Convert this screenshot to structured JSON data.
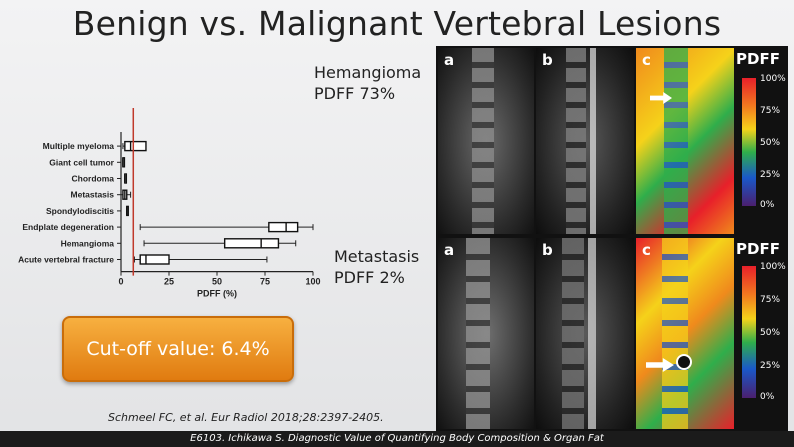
{
  "title": "Benign vs. Malignant Vertebral Lesions",
  "hemangioma": {
    "line1": "Hemangioma",
    "line2": "PDFF 73%"
  },
  "metastasis": {
    "line1": "Metastasis",
    "line2": "PDFF 2%"
  },
  "cutoff": "Cut-off value: 6.4%",
  "citation": "Schmeel FC, et al. Eur Radiol 2018;28:2397-2405.",
  "footer": "E6103. Ichikawa S. Diagnostic Value of Quantifying  Body Composition & Organ Fat",
  "mri_top": {
    "labels": [
      "a",
      "b",
      "c"
    ],
    "scale_title": "PDFF",
    "ticks": [
      "100%",
      "75%",
      "50%",
      "25%",
      "0%"
    ]
  },
  "mri_bottom": {
    "labels": [
      "a",
      "b",
      "c"
    ],
    "scale_title": "PDFF",
    "ticks": [
      "100%",
      "75%",
      "50%",
      "25%",
      "0%"
    ]
  },
  "chart_data": {
    "type": "boxplot",
    "xlabel": "PDFF (%)",
    "xlim": [
      0,
      100
    ],
    "xticks": [
      0,
      25,
      50,
      75,
      100
    ],
    "cutoff_value": 6.4,
    "cutoff_color": "#c0392b",
    "categories": [
      "Multiple myeloma",
      "Giant cell tumor",
      "Chordoma",
      "Metastasis",
      "Spondylodiscitis",
      "Endplate degeneration",
      "Hemangioma",
      "Acute vertebral fracture"
    ],
    "boxes": [
      {
        "min": 1,
        "q1": 2,
        "median": 5,
        "q3": 13,
        "max": 13
      },
      {
        "min": 1,
        "q1": 1,
        "median": 1,
        "q3": 1,
        "max": 1
      },
      {
        "min": 2,
        "q1": 2,
        "median": 2,
        "q3": 2,
        "max": 2
      },
      {
        "min": 0,
        "q1": 1,
        "median": 2,
        "q3": 3,
        "max": 5
      },
      {
        "min": 3,
        "q1": 3,
        "median": 3,
        "q3": 3,
        "max": 3
      },
      {
        "min": 10,
        "q1": 77,
        "median": 86,
        "q3": 92,
        "max": 100
      },
      {
        "min": 12,
        "q1": 54,
        "median": 73,
        "q3": 82,
        "max": 91
      },
      {
        "min": 7,
        "q1": 10,
        "median": 13,
        "q3": 25,
        "max": 76
      }
    ]
  }
}
